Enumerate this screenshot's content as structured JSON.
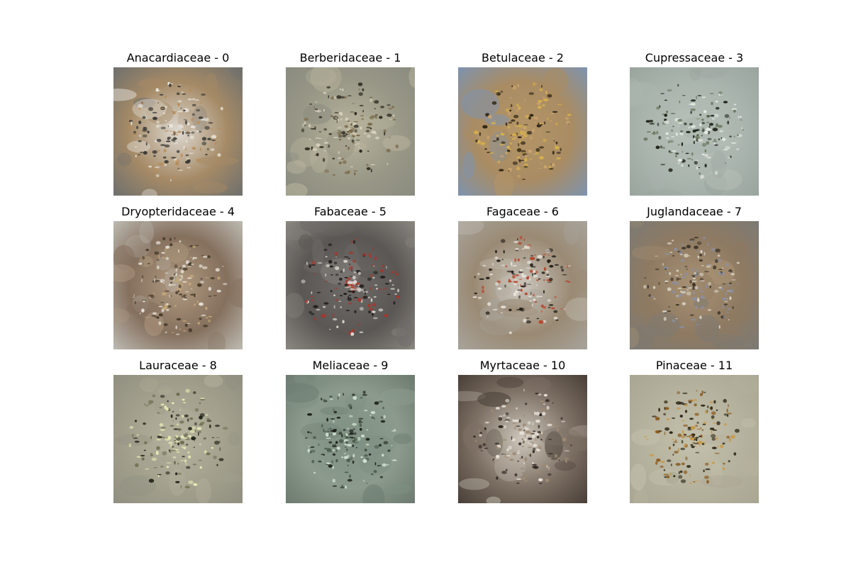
{
  "panels": [
    {
      "title": "Anacardiaceae - 0",
      "bg": [
        "#dedad2",
        "#a58a66",
        "#6f706d"
      ],
      "speck": [
        "#b88c5a",
        "#3b3a35",
        "#e9e5dc"
      ],
      "seed": 11
    },
    {
      "title": "Berberidaceae - 1",
      "bg": [
        "#b9b59e",
        "#9a9887",
        "#8a8c80"
      ],
      "speck": [
        "#2f2c22",
        "#d9d3bf",
        "#7a6a4c"
      ],
      "seed": 23
    },
    {
      "title": "Betulaceae - 2",
      "bg": [
        "#b49568",
        "#a98c63",
        "#7f93ad"
      ],
      "speck": [
        "#d8b24a",
        "#2f2614",
        "#c9a46f"
      ],
      "seed": 37
    },
    {
      "title": "Cupressaceae - 3",
      "bg": [
        "#b7c0b8",
        "#aab5ae",
        "#9aa59e"
      ],
      "speck": [
        "#1f2218",
        "#e6ece4",
        "#6e7a62"
      ],
      "seed": 41
    },
    {
      "title": "Dryopteridaceae - 4",
      "bg": [
        "#b09a80",
        "#85705e",
        "#bcb9b0"
      ],
      "speck": [
        "#e2ddd2",
        "#4a3d2c",
        "#c4a878"
      ],
      "seed": 53
    },
    {
      "title": "Fabaceae - 5",
      "bg": [
        "#6e6b68",
        "#5a5754",
        "#8a8680"
      ],
      "speck": [
        "#a8352b",
        "#dad5cd",
        "#1d1b1a"
      ],
      "seed": 67
    },
    {
      "title": "Fagaceae - 6",
      "bg": [
        "#c9c4bb",
        "#9a8a74",
        "#a7a39a"
      ],
      "speck": [
        "#b8452c",
        "#241f1a",
        "#e8e3da"
      ],
      "seed": 71
    },
    {
      "title": "Juglandaceae - 7",
      "bg": [
        "#a89274",
        "#8e7a62",
        "#7c7a74"
      ],
      "speck": [
        "#d9d2c4",
        "#3d3428",
        "#8a90a8"
      ],
      "seed": 83
    },
    {
      "title": "Lauraceae - 8",
      "bg": [
        "#b6b39f",
        "#a3a08d",
        "#918f80"
      ],
      "speck": [
        "#1f2116",
        "#e6eab4",
        "#6c6c50"
      ],
      "seed": 97
    },
    {
      "title": "Meliaceae - 9",
      "bg": [
        "#7f9184",
        "#8b9a8c",
        "#6d7b70"
      ],
      "speck": [
        "#1a1d17",
        "#d4e4d4",
        "#4a5a4a"
      ],
      "seed": 101
    },
    {
      "title": "Myrtaceae - 10",
      "bg": [
        "#cfc8bc",
        "#7d7064",
        "#4a4038"
      ],
      "speck": [
        "#e8e2d8",
        "#2b241f",
        "#9c8a74"
      ],
      "seed": 113
    },
    {
      "title": "Pinaceae - 11",
      "bg": [
        "#c4c1ad",
        "#b5b29e",
        "#a9a693"
      ],
      "speck": [
        "#8a5a1e",
        "#2b2414",
        "#c89a48"
      ],
      "seed": 127
    }
  ]
}
